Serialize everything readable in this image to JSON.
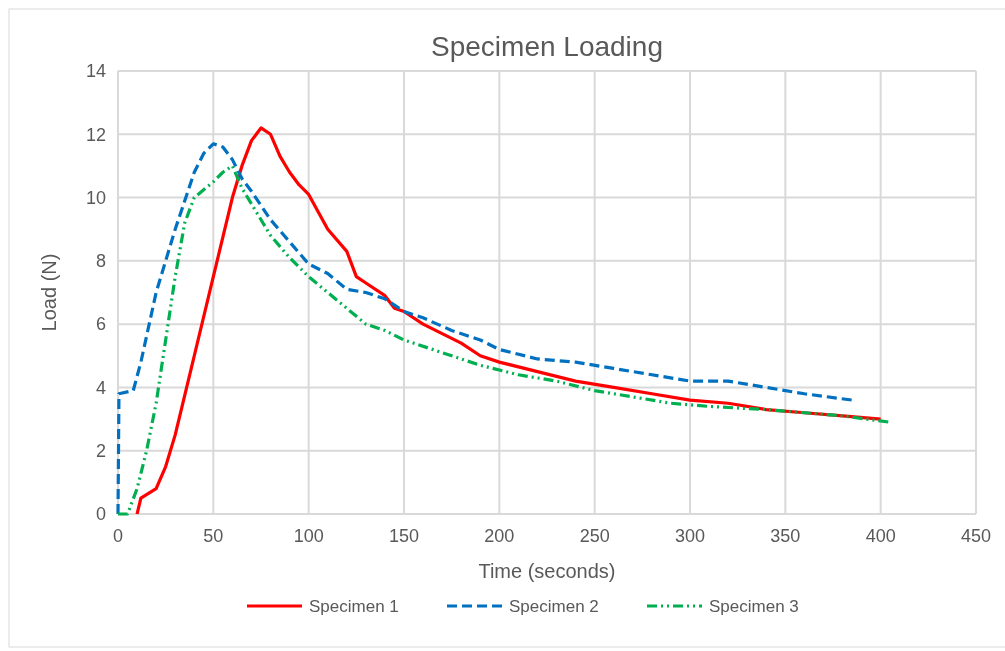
{
  "chart_data": {
    "type": "line",
    "title": "Specimen Loading",
    "xlabel": "Time (seconds)",
    "ylabel": "Load (N)",
    "xlim": [
      0,
      450
    ],
    "xticks": [
      0,
      50,
      100,
      150,
      200,
      250,
      300,
      350,
      400,
      450
    ],
    "ylim": [
      0,
      14
    ],
    "yticks": [
      0,
      2,
      4,
      6,
      8,
      10,
      12,
      14
    ],
    "grid": true,
    "legend": "bottom",
    "marker": "none",
    "series": [
      {
        "name": "Specimen 1",
        "color": "#ff0000",
        "line_style": "solid",
        "x": [
          10,
          12,
          20,
          25,
          30,
          40,
          50,
          60,
          65,
          70,
          75,
          80,
          85,
          90,
          95,
          100,
          110,
          120,
          125,
          130,
          140,
          145,
          150,
          160,
          170,
          180,
          190,
          200,
          220,
          240,
          260,
          280,
          300,
          320,
          340,
          360,
          380,
          400
        ],
        "values": [
          0,
          0.5,
          0.8,
          1.5,
          2.5,
          5,
          7.5,
          10,
          11,
          11.8,
          12.2,
          12,
          11.3,
          10.8,
          10.4,
          10.1,
          9,
          8.3,
          7.5,
          7.3,
          6.9,
          6.5,
          6.4,
          6,
          5.7,
          5.4,
          5,
          4.8,
          4.5,
          4.2,
          4,
          3.8,
          3.6,
          3.5,
          3.3,
          3.2,
          3.1,
          3
        ]
      },
      {
        "name": "Specimen 2",
        "color": "#0070c0",
        "line_style": "dashed",
        "x": [
          0,
          0.5,
          8,
          12,
          20,
          30,
          40,
          45,
          50,
          55,
          60,
          65,
          70,
          80,
          90,
          100,
          110,
          120,
          130,
          140,
          150,
          160,
          175,
          190,
          200,
          220,
          240,
          260,
          280,
          300,
          320,
          340,
          360,
          385
        ],
        "values": [
          0,
          3.8,
          3.9,
          4.8,
          7,
          9,
          10.8,
          11.4,
          11.7,
          11.6,
          11.2,
          10.6,
          10.2,
          9.3,
          8.6,
          7.9,
          7.6,
          7.1,
          7,
          6.8,
          6.4,
          6.2,
          5.8,
          5.5,
          5.2,
          4.9,
          4.8,
          4.6,
          4.4,
          4.2,
          4.2,
          4,
          3.8,
          3.6
        ]
      },
      {
        "name": "Specimen 3",
        "color": "#00b050",
        "line_style": "dotted",
        "x": [
          0,
          5,
          10,
          15,
          20,
          25,
          30,
          35,
          40,
          50,
          55,
          60,
          65,
          70,
          80,
          90,
          100,
          110,
          120,
          130,
          140,
          150,
          170,
          190,
          210,
          230,
          250,
          270,
          290,
          310,
          340,
          360,
          380,
          405
        ],
        "values": [
          0,
          0,
          0.8,
          2,
          3.5,
          5.5,
          7.5,
          9.2,
          10,
          10.5,
          10.8,
          11,
          10.3,
          9.8,
          8.8,
          8.1,
          7.5,
          7,
          6.5,
          6,
          5.8,
          5.5,
          5.1,
          4.7,
          4.4,
          4.2,
          3.9,
          3.7,
          3.5,
          3.4,
          3.3,
          3.2,
          3.1,
          2.9
        ]
      }
    ]
  }
}
